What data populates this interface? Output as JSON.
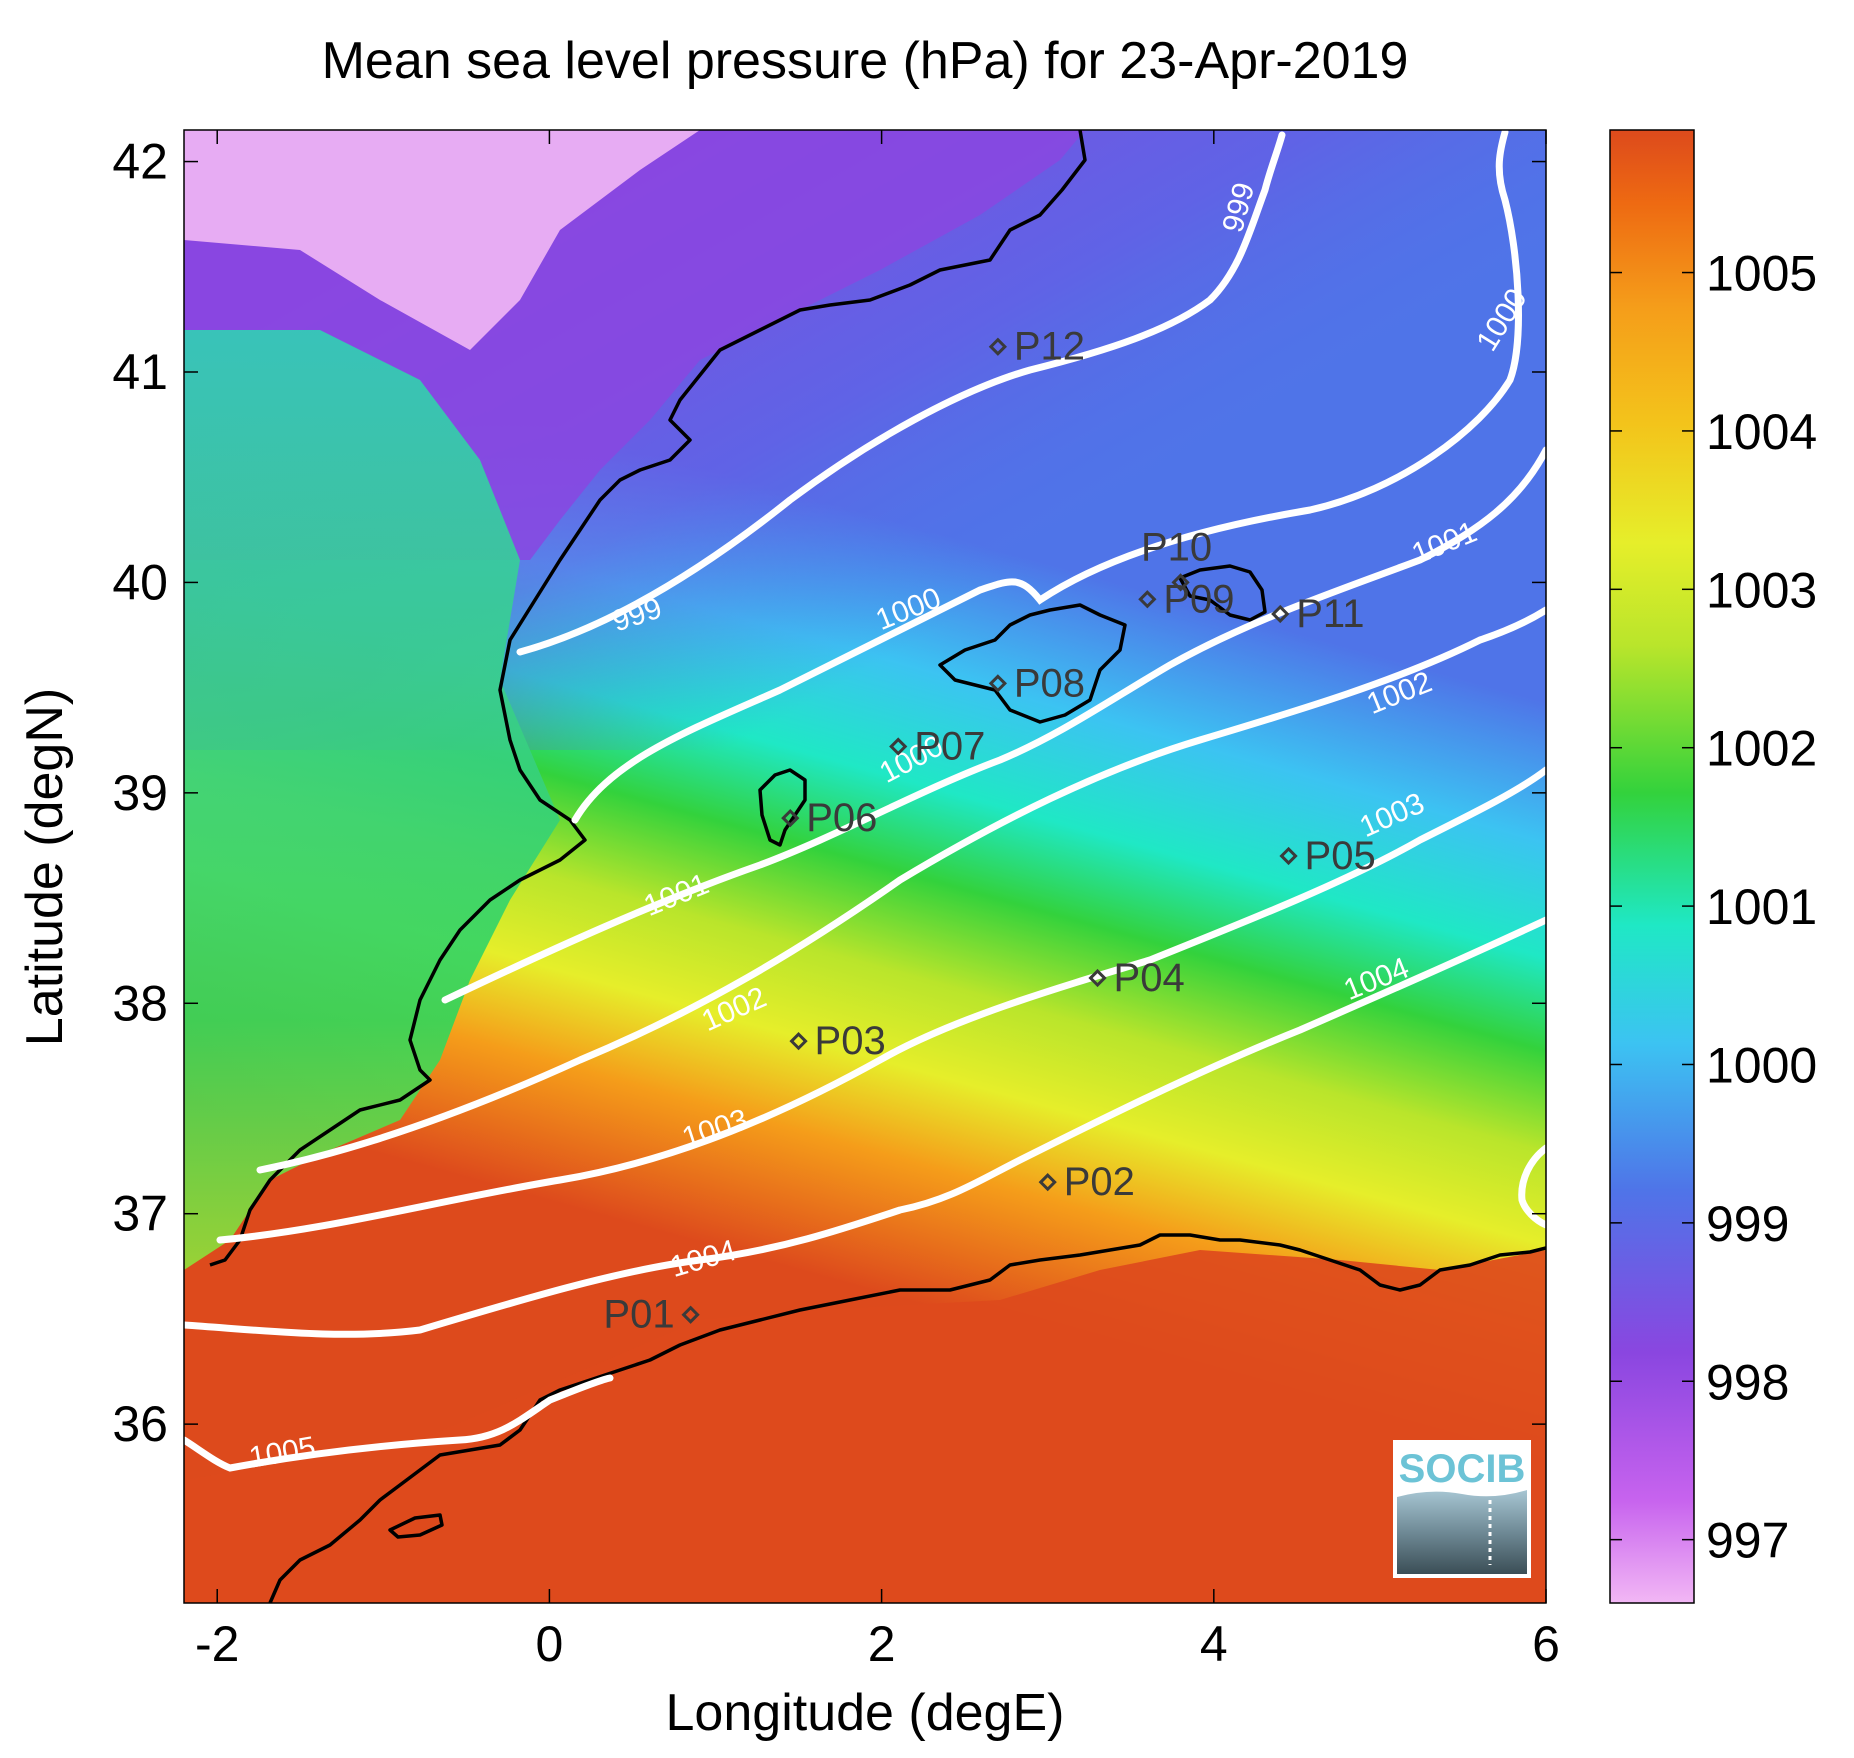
{
  "chart_data": {
    "type": "heatmap",
    "title": "Mean sea level pressure (hPa) for 23-Apr-2019",
    "xlabel": "Longitude (degE)",
    "ylabel": "Latitude (degN)",
    "xlim": [
      -2.2,
      6.0
    ],
    "ylim": [
      35.15,
      42.15
    ],
    "x_ticks": [
      -2,
      0,
      2,
      4,
      6
    ],
    "y_ticks": [
      36,
      37,
      38,
      39,
      40,
      41,
      42
    ],
    "colorbar": {
      "range": [
        996.6,
        1005.9
      ],
      "ticks": [
        997,
        998,
        999,
        1000,
        1001,
        1002,
        1003,
        1004,
        1005
      ],
      "colors": [
        "#f2b7f5",
        "#c763ee",
        "#8a46e0",
        "#4f74e8",
        "#3cc3f2",
        "#1fe8c5",
        "#2fd65b",
        "#33d23c",
        "#b9e52b",
        "#e6ee2a",
        "#f3c41b",
        "#f59d1a",
        "#ee6a12",
        "#dd4a1c"
      ]
    },
    "contour_levels": [
      {
        "level": 999,
        "label": "999"
      },
      {
        "level": 1000,
        "label": "1000"
      },
      {
        "level": 1001,
        "label": "1001"
      },
      {
        "level": 1002,
        "label": "1002"
      },
      {
        "level": 1003,
        "label": "1003"
      },
      {
        "level": 1004,
        "label": "1004"
      },
      {
        "level": 1005,
        "label": "1005"
      }
    ],
    "stations": [
      {
        "name": "P01",
        "lon": 0.85,
        "lat": 36.52
      },
      {
        "name": "P02",
        "lon": 3.0,
        "lat": 37.15
      },
      {
        "name": "P03",
        "lon": 1.5,
        "lat": 37.82
      },
      {
        "name": "P04",
        "lon": 3.3,
        "lat": 38.12
      },
      {
        "name": "P05",
        "lon": 4.45,
        "lat": 38.7
      },
      {
        "name": "P06",
        "lon": 1.45,
        "lat": 38.88
      },
      {
        "name": "P07",
        "lon": 2.1,
        "lat": 39.22
      },
      {
        "name": "P08",
        "lon": 2.7,
        "lat": 39.52
      },
      {
        "name": "P09",
        "lon": 3.6,
        "lat": 39.92
      },
      {
        "name": "P10",
        "lon": 3.8,
        "lat": 40.0
      },
      {
        "name": "P11",
        "lon": 4.4,
        "lat": 39.85
      },
      {
        "name": "P12",
        "lon": 2.7,
        "lat": 41.12
      }
    ]
  },
  "logo": {
    "text": "SOCIB"
  }
}
